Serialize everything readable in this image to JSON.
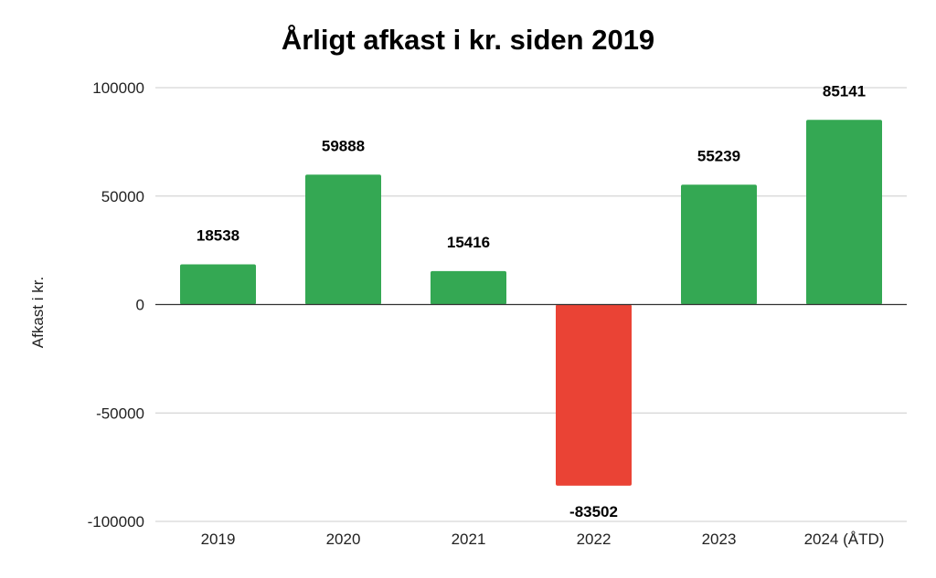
{
  "chart_data": {
    "type": "bar",
    "title": "Årligt afkast i kr. siden 2019",
    "ylabel": "Afkast i kr.",
    "xlabel": "",
    "categories": [
      "2019",
      "2020",
      "2021",
      "2022",
      "2023",
      "2024 (ÅTD)"
    ],
    "values": [
      18538,
      59888,
      15416,
      -83502,
      55239,
      85141
    ],
    "ylim": [
      -100000,
      100000
    ],
    "yticks": [
      100000,
      50000,
      0,
      -50000,
      -100000
    ],
    "grid": true,
    "legend": "none",
    "data_labels": true,
    "colors": {
      "positive": "#34a853",
      "negative": "#ea4335",
      "grid": "#cccccc",
      "zero_line": "#333333"
    }
  }
}
